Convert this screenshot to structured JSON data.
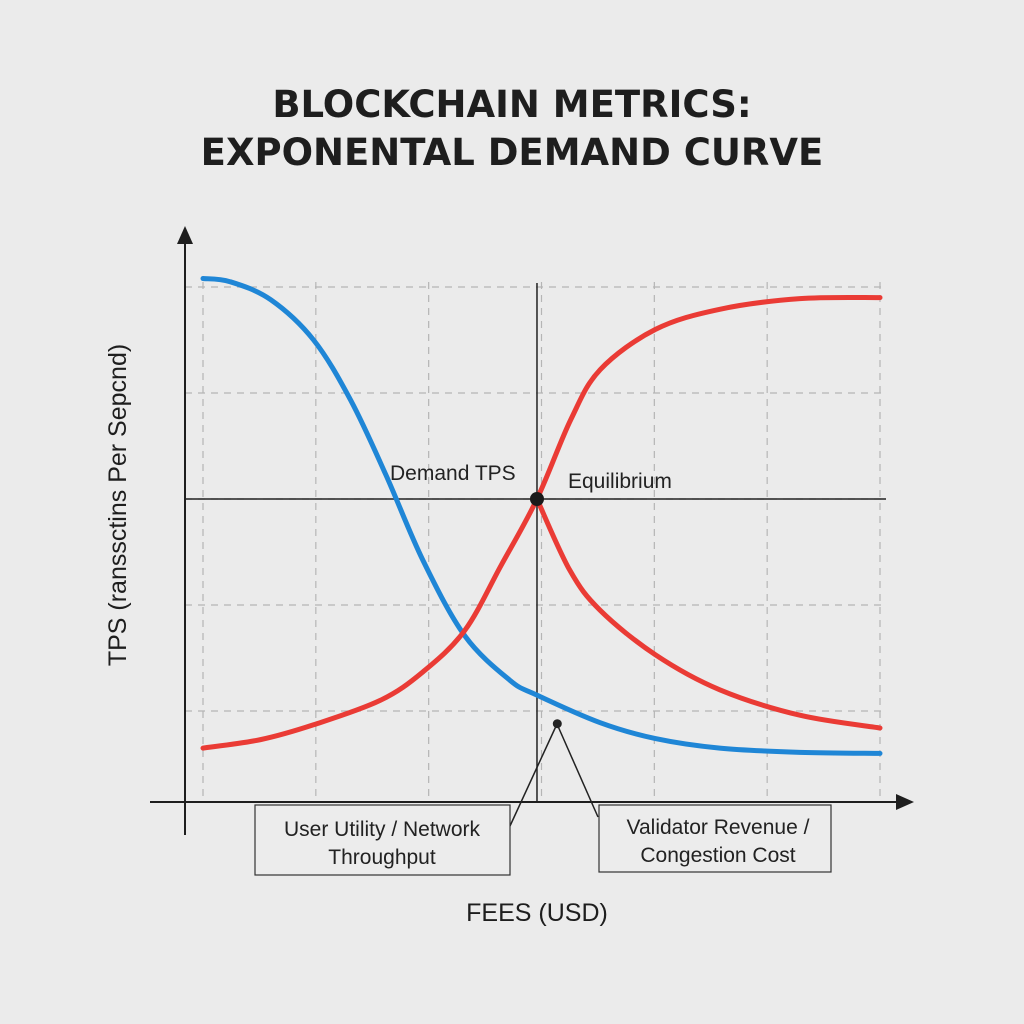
{
  "title": [
    "BLOCKCHAIN METRICS:",
    "EXPONENTAL DEMAND CURVE"
  ],
  "chart_data": {
    "type": "line",
    "xlabel": "FEES (USD)",
    "ylabel": "TPS (ranssctins Per Sepcnd)",
    "grid": true,
    "xlim": [
      0,
      6
    ],
    "ylim": [
      0,
      5.2
    ],
    "series": [
      {
        "color": "#1f86d6",
        "points": [
          [
            0,
            5.08
          ],
          [
            0.24,
            5.05
          ],
          [
            0.6,
            4.88
          ],
          [
            0.98,
            4.5
          ],
          [
            1.31,
            3.93
          ],
          [
            1.62,
            3.23
          ],
          [
            1.95,
            2.42
          ],
          [
            2.32,
            1.71
          ],
          [
            2.72,
            1.29
          ],
          [
            2.96,
            1.15
          ],
          [
            3.52,
            0.89
          ],
          [
            4.01,
            0.74
          ],
          [
            4.58,
            0.65
          ],
          [
            5.29,
            0.61
          ],
          [
            6,
            0.6
          ]
        ]
      },
      {
        "color": "#ea3b35",
        "points": [
          [
            0,
            0.65
          ],
          [
            0.51,
            0.73
          ],
          [
            0.98,
            0.87
          ],
          [
            1.57,
            1.1
          ],
          [
            1.95,
            1.37
          ],
          [
            2.32,
            1.76
          ],
          [
            2.64,
            2.37
          ],
          [
            2.96,
            3.0
          ],
          [
            3.26,
            3.75
          ],
          [
            3.52,
            4.22
          ],
          [
            4.01,
            4.6
          ],
          [
            4.58,
            4.79
          ],
          [
            5.29,
            4.89
          ],
          [
            6,
            4.9
          ]
        ]
      },
      {
        "color": "#ea3b35",
        "points": [
          [
            2.96,
            3.0
          ],
          [
            3.25,
            2.33
          ],
          [
            3.52,
            1.95
          ],
          [
            4.01,
            1.53
          ],
          [
            4.58,
            1.2
          ],
          [
            5.29,
            0.96
          ],
          [
            6,
            0.84
          ]
        ]
      }
    ],
    "equilibrium": {
      "x": 2.96,
      "y": 3.0,
      "label": "Equilibrium"
    },
    "annotations": [
      {
        "text": "Demand TPS"
      },
      {
        "text": [
          "User Utility / Network",
          "Throughput"
        ]
      },
      {
        "text": [
          "Validator Revenue /",
          "Congestion Cost"
        ]
      }
    ],
    "annotation_point": {
      "x": 3.14,
      "y": 0.88
    }
  }
}
